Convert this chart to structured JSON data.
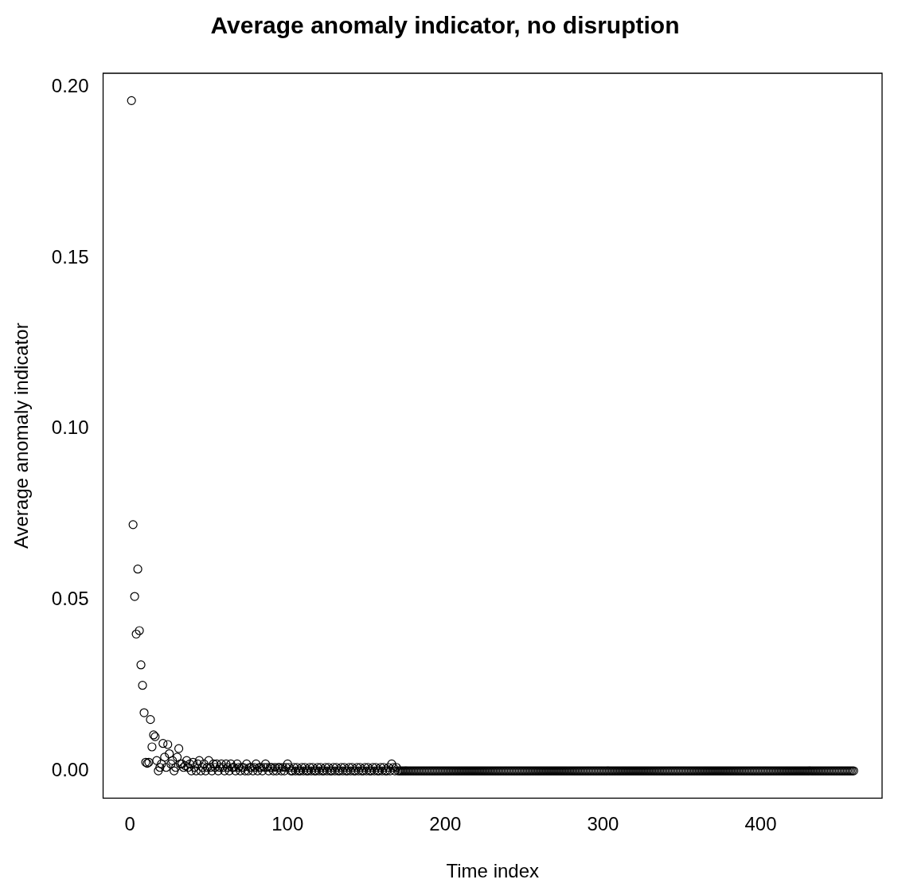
{
  "chart_data": {
    "type": "scatter",
    "title": "Average anomaly indicator, no disruption",
    "xlabel": "Time index",
    "ylabel": "Average anomaly indicator",
    "marker": "circle",
    "grid": false,
    "legend": false,
    "xlim": [
      -17,
      477
    ],
    "ylim": [
      -0.008,
      0.204
    ],
    "xticks": [
      0,
      100,
      200,
      300,
      400
    ],
    "yticks": [
      {
        "value": 0,
        "label": "0.00"
      },
      0.05,
      {
        "value": 0.1,
        "label": "0.10"
      },
      0.15,
      {
        "value": 0.2,
        "label": "0.20"
      }
    ],
    "series": [
      {
        "color": "#000000",
        "x": [
          1,
          2,
          3,
          4,
          5,
          6,
          7,
          8,
          9,
          10,
          11,
          12,
          13,
          14,
          15,
          16,
          17,
          18,
          19,
          20,
          21,
          22,
          23,
          24,
          25,
          26,
          27,
          28,
          29,
          30,
          31,
          32,
          33,
          34,
          35,
          36,
          37,
          38,
          39,
          40,
          41,
          42,
          43,
          44,
          45,
          46,
          47,
          48,
          49,
          50,
          51,
          52,
          53,
          54,
          55,
          56,
          57,
          58,
          59,
          60,
          61,
          62,
          63,
          64,
          65,
          66,
          67,
          68,
          69,
          70,
          71,
          72,
          73,
          74,
          75,
          76,
          77,
          78,
          79,
          80,
          81,
          82,
          83,
          84,
          85,
          86,
          87,
          88,
          89,
          90,
          91,
          92,
          93,
          94,
          95,
          96,
          97,
          98,
          99,
          100,
          101,
          102,
          103,
          104,
          105,
          106,
          107,
          108,
          109,
          110,
          111,
          112,
          113,
          114,
          115,
          116,
          117,
          118,
          119,
          120,
          121,
          122,
          123,
          124,
          125,
          126,
          127,
          128,
          129,
          130,
          131,
          132,
          133,
          134,
          135,
          136,
          137,
          138,
          139,
          140,
          141,
          142,
          143,
          144,
          145,
          146,
          147,
          148,
          149,
          150,
          151,
          152,
          153,
          154,
          155,
          156,
          157,
          158,
          159,
          160,
          161,
          162,
          163,
          164,
          165,
          166,
          167,
          168,
          169,
          170,
          171,
          172,
          173,
          174,
          175,
          176,
          177,
          178,
          179,
          180,
          181,
          182,
          183,
          184,
          185,
          186,
          187,
          188,
          189,
          190,
          191,
          192,
          193,
          194,
          195,
          196,
          197,
          198,
          199,
          200,
          201,
          202,
          203,
          204,
          205,
          206,
          207,
          208,
          209,
          210,
          211,
          212,
          213,
          214,
          215,
          216,
          217,
          218,
          219,
          220,
          221,
          222,
          223,
          224,
          225,
          226,
          227,
          228,
          229,
          230,
          231,
          232,
          233,
          234,
          235,
          236,
          237,
          238,
          239,
          240,
          241,
          242,
          243,
          244,
          245,
          246,
          247,
          248,
          249,
          250,
          251,
          252,
          253,
          254,
          255,
          256,
          257,
          258,
          259,
          260,
          261,
          262,
          263,
          264,
          265,
          266,
          267,
          268,
          269,
          270,
          271,
          272,
          273,
          274,
          275,
          276,
          277,
          278,
          279,
          280,
          281,
          282,
          283,
          284,
          285,
          286,
          287,
          288,
          289,
          290,
          291,
          292,
          293,
          294,
          295,
          296,
          297,
          298,
          299,
          300,
          301,
          302,
          303,
          304,
          305,
          306,
          307,
          308,
          309,
          310,
          311,
          312,
          313,
          314,
          315,
          316,
          317,
          318,
          319,
          320,
          321,
          322,
          323,
          324,
          325,
          326,
          327,
          328,
          329,
          330,
          331,
          332,
          333,
          334,
          335,
          336,
          337,
          338,
          339,
          340,
          341,
          342,
          343,
          344,
          345,
          346,
          347,
          348,
          349,
          350,
          351,
          352,
          353,
          354,
          355,
          356,
          357,
          358,
          359,
          360,
          361,
          362,
          363,
          364,
          365,
          366,
          367,
          368,
          369,
          370,
          371,
          372,
          373,
          374,
          375,
          376,
          377,
          378,
          379,
          380,
          381,
          382,
          383,
          384,
          385,
          386,
          387,
          388,
          389,
          390,
          391,
          392,
          393,
          394,
          395,
          396,
          397,
          398,
          399,
          400,
          401,
          402,
          403,
          404,
          405,
          406,
          407,
          408,
          409,
          410,
          411,
          412,
          413,
          414,
          415,
          416,
          417,
          418,
          419,
          420,
          421,
          422,
          423,
          424,
          425,
          426,
          427,
          428,
          429,
          430,
          431,
          432,
          433,
          434,
          435,
          436,
          437,
          438,
          439,
          440,
          441,
          442,
          443,
          444,
          445,
          446,
          447,
          448,
          449,
          450,
          451,
          452,
          453,
          454,
          455,
          456,
          457,
          458,
          459
        ],
        "values": [
          0.196,
          0.072,
          0.051,
          0.04,
          0.059,
          0.041,
          0.031,
          0.025,
          0.017,
          0.0025,
          0.0022,
          0.0025,
          0.015,
          0.007,
          0.0105,
          0.01,
          0.003,
          0,
          0.001,
          0.002,
          0.008,
          0.004,
          0.001,
          0.0077,
          0.005,
          0.002,
          0.003,
          0,
          0.001,
          0.004,
          0.0065,
          0.002,
          0.002,
          0.001,
          0.0015,
          0.003,
          0.001,
          0.002,
          0,
          0.0025,
          0.001,
          0,
          0.002,
          0.003,
          0,
          0.001,
          0.002,
          0,
          0.001,
          0.003,
          0.001,
          0,
          0.002,
          0.001,
          0.002,
          0,
          0.001,
          0.002,
          0.001,
          0,
          0.002,
          0.001,
          0,
          0.002,
          0.001,
          0.001,
          0,
          0.002,
          0.001,
          0,
          0.001,
          0.001,
          0,
          0.002,
          0,
          0.001,
          0.001,
          0,
          0.001,
          0.002,
          0,
          0.001,
          0.001,
          0,
          0.001,
          0.002,
          0.001,
          0,
          0.001,
          0.001,
          0,
          0.001,
          0,
          0.001,
          0.001,
          0,
          0.001,
          0,
          0.001,
          0.002,
          0.001,
          0,
          0,
          0.001,
          0,
          0.001,
          0,
          0,
          0.001,
          0,
          0.001,
          0,
          0,
          0.001,
          0,
          0.001,
          0,
          0,
          0.001,
          0,
          0.001,
          0,
          0,
          0.001,
          0,
          0.001,
          0,
          0,
          0.001,
          0,
          0.001,
          0,
          0,
          0.001,
          0,
          0.001,
          0,
          0,
          0.001,
          0,
          0.001,
          0,
          0,
          0.001,
          0,
          0.001,
          0,
          0,
          0.001,
          0,
          0.001,
          0,
          0,
          0.001,
          0,
          0.001,
          0,
          0,
          0.001,
          0,
          0.001,
          0,
          0,
          0.001,
          0,
          0.002,
          0.001,
          0,
          0.001,
          0,
          0,
          0,
          0,
          0,
          0,
          0,
          0,
          0,
          0,
          0,
          0,
          0,
          0,
          0,
          0,
          0,
          0,
          0,
          0,
          0,
          0,
          0,
          0,
          0,
          0,
          0,
          0,
          0,
          0,
          0,
          0,
          0,
          0,
          0,
          0,
          0,
          0,
          0,
          0,
          0,
          0,
          0,
          0,
          0,
          0,
          0,
          0,
          0,
          0,
          0,
          0,
          0,
          0,
          0,
          0,
          0,
          0,
          0,
          0,
          0,
          0,
          0,
          0,
          0,
          0,
          0,
          0,
          0,
          0,
          0,
          0,
          0,
          0,
          0,
          0,
          0,
          0,
          0,
          0,
          0,
          0,
          0,
          0,
          0,
          0,
          0,
          0,
          0,
          0,
          0,
          0,
          0,
          0,
          0,
          0,
          0,
          0,
          0,
          0,
          0,
          0,
          0,
          0,
          0,
          0,
          0,
          0,
          0,
          0,
          0,
          0,
          0,
          0,
          0,
          0,
          0,
          0,
          0,
          0,
          0,
          0,
          0,
          0,
          0,
          0,
          0,
          0,
          0,
          0,
          0,
          0,
          0,
          0,
          0,
          0,
          0,
          0,
          0,
          0,
          0,
          0,
          0,
          0,
          0,
          0,
          0,
          0,
          0,
          0,
          0,
          0,
          0,
          0,
          0,
          0,
          0,
          0,
          0,
          0,
          0,
          0,
          0,
          0,
          0,
          0,
          0,
          0,
          0,
          0,
          0,
          0,
          0,
          0,
          0,
          0,
          0,
          0,
          0,
          0,
          0,
          0,
          0,
          0,
          0,
          0,
          0,
          0,
          0,
          0,
          0,
          0,
          0,
          0,
          0,
          0,
          0,
          0,
          0,
          0,
          0,
          0,
          0,
          0,
          0,
          0,
          0,
          0,
          0,
          0,
          0,
          0,
          0,
          0,
          0,
          0,
          0,
          0,
          0,
          0,
          0,
          0,
          0,
          0,
          0,
          0,
          0,
          0,
          0,
          0,
          0,
          0,
          0,
          0,
          0,
          0,
          0,
          0,
          0,
          0,
          0,
          0,
          0,
          0,
          0,
          0,
          0,
          0,
          0,
          0,
          0,
          0,
          0,
          0,
          0,
          0,
          0,
          0,
          0,
          0,
          0,
          0,
          0,
          0,
          0,
          0,
          0,
          0,
          0,
          0,
          0,
          0,
          0,
          0,
          0,
          0,
          0,
          0,
          0,
          0,
          0,
          0,
          0,
          0,
          0,
          0,
          0,
          0,
          0,
          0
        ]
      }
    ]
  }
}
